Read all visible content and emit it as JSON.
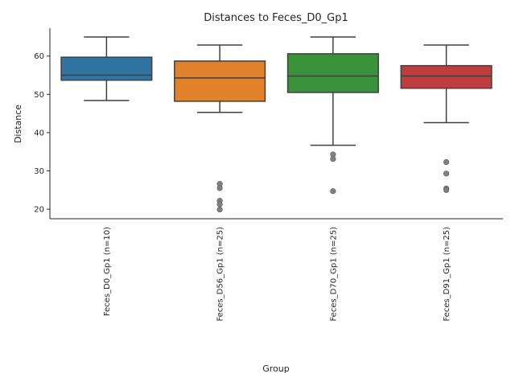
{
  "chart_data": {
    "type": "box",
    "title": "Distances to Feces_D0_Gp1",
    "xlabel": "Group",
    "ylabel": "Distance",
    "ylim": [
      17.5,
      67.3
    ],
    "yticks": [
      20,
      30,
      40,
      50,
      60
    ],
    "grid": false,
    "legend": "none",
    "categories": [
      "Feces_D0_Gp1 (n=10)",
      "Feces_D56_Gp1 (n=25)",
      "Feces_D70_Gp1 (n=25)",
      "Feces_D91_Gp1 (n=25)"
    ],
    "boxes": [
      {
        "whisker_low": 48.4,
        "q1": 53.7,
        "median": 55.0,
        "q3": 59.7,
        "whisker_high": 65.0,
        "color": "#3274a1",
        "outliers": []
      },
      {
        "whisker_low": 45.3,
        "q1": 48.2,
        "median": 54.3,
        "q3": 58.7,
        "whisker_high": 62.9,
        "color": "#e1812c",
        "outliers": [
          26.6,
          25.5,
          22.2,
          21.3,
          19.9
        ]
      },
      {
        "whisker_low": 36.7,
        "q1": 50.5,
        "median": 54.8,
        "q3": 60.6,
        "whisker_high": 65.0,
        "color": "#3a923a",
        "outliers": [
          34.3,
          33.1,
          24.7
        ]
      },
      {
        "whisker_low": 42.6,
        "q1": 51.6,
        "median": 54.8,
        "q3": 57.5,
        "whisker_high": 62.9,
        "color": "#c03d3e",
        "outliers": [
          32.3,
          29.3,
          25.4,
          25.0
        ]
      }
    ],
    "line_color": "#3f3f3f",
    "outlier_color": "#808080"
  }
}
